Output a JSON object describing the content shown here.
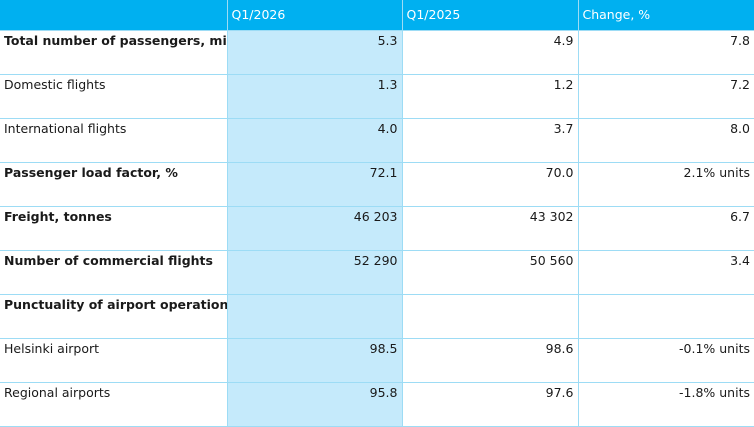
{
  "header": {
    "col0": "",
    "col1": "Q1/2026",
    "col2": "Q1/2025",
    "col3": "Change, %"
  },
  "rows": [
    {
      "label": "Total number of passengers, million",
      "q1_2026": "5.3",
      "q1_2025": "4.9",
      "change": "7.8",
      "bold": true
    },
    {
      "label": "Domestic flights",
      "q1_2026": "1.3",
      "q1_2025": "1.2",
      "change": "7.2",
      "bold": false
    },
    {
      "label": "International flights",
      "q1_2026": "4.0",
      "q1_2025": "3.7",
      "change": "8.0",
      "bold": false
    },
    {
      "label": "Passenger load factor, %",
      "q1_2026": "72.1",
      "q1_2025": "70.0",
      "change": "2.1% units",
      "bold": true
    },
    {
      "label": "Freight, tonnes",
      "q1_2026": "46 203",
      "q1_2025": "43 302",
      "change": "6.7",
      "bold": true
    },
    {
      "label": "Number of commercial flights",
      "q1_2026": "52 290",
      "q1_2025": "50 560",
      "change": "3.4",
      "bold": true
    },
    {
      "label": "Punctuality of airport operations, %",
      "q1_2026": "",
      "q1_2025": "",
      "change": "",
      "bold": true
    },
    {
      "label": "Helsinki airport",
      "q1_2026": "98.5",
      "q1_2025": "98.6",
      "change": "-0.1% units",
      "bold": false
    },
    {
      "label": "Regional airports",
      "q1_2026": "95.8",
      "q1_2025": "97.6",
      "change": "-1.8% units",
      "bold": false
    }
  ],
  "colors": {
    "header_bg": "#00b0f0",
    "highlight_col_bg": "#c5eafb",
    "grid_line": "#9ddcf5"
  }
}
